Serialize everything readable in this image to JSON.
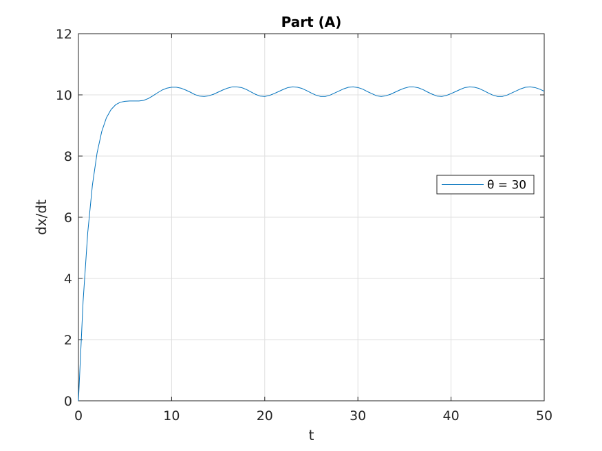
{
  "chart_data": {
    "type": "line",
    "title": "Part (A)",
    "xlabel": "t",
    "ylabel": "dx/dt",
    "xlim": [
      0,
      50
    ],
    "ylim": [
      0,
      12
    ],
    "xticks": [
      0,
      10,
      20,
      30,
      40,
      50
    ],
    "yticks": [
      0,
      2,
      4,
      6,
      8,
      10,
      12
    ],
    "grid": true,
    "legend_position": "right-middle",
    "series": [
      {
        "name": "θ = 30",
        "color": "#0072bd",
        "x": [
          0,
          0.5,
          1,
          1.5,
          2,
          2.5,
          3,
          3.5,
          4,
          4.5,
          5,
          5.5,
          6,
          6.5,
          7,
          7.5,
          8,
          8.5,
          9,
          9.5,
          10,
          10.5,
          11,
          11.5,
          12,
          12.5,
          13,
          13.5,
          14,
          14.5,
          15,
          15.5,
          16,
          16.5,
          17,
          17.5,
          18,
          18.5,
          19,
          19.5,
          20,
          20.5,
          21,
          21.5,
          22,
          22.5,
          23,
          23.5,
          24,
          24.5,
          25,
          25.5,
          26,
          26.5,
          27,
          27.5,
          28,
          28.5,
          29,
          29.5,
          30,
          30.5,
          31,
          31.5,
          32,
          32.5,
          33,
          33.5,
          34,
          34.5,
          35,
          35.5,
          36,
          36.5,
          37,
          37.5,
          38,
          38.5,
          39,
          39.5,
          40,
          40.5,
          41,
          41.5,
          42,
          42.5,
          43,
          43.5,
          44,
          44.5,
          45,
          45.5,
          46,
          46.5,
          47,
          47.5,
          48,
          48.5,
          49,
          49.5,
          50
        ],
        "y": [
          0,
          3.25,
          5.5,
          7.05,
          8.1,
          8.8,
          9.25,
          9.52,
          9.68,
          9.76,
          9.79,
          9.8,
          9.8,
          9.8,
          9.82,
          9.88,
          9.97,
          10.07,
          10.16,
          10.22,
          10.25,
          10.25,
          10.22,
          10.16,
          10.09,
          10.01,
          9.96,
          9.95,
          9.97,
          10.02,
          10.09,
          10.16,
          10.22,
          10.26,
          10.26,
          10.24,
          10.18,
          10.1,
          10.02,
          9.96,
          9.95,
          9.98,
          10.04,
          10.11,
          10.18,
          10.24,
          10.26,
          10.25,
          10.21,
          10.14,
          10.06,
          9.99,
          9.95,
          9.95,
          9.99,
          10.06,
          10.13,
          10.2,
          10.25,
          10.26,
          10.24,
          10.19,
          10.11,
          10.04,
          9.97,
          9.95,
          9.97,
          10.02,
          10.09,
          10.16,
          10.22,
          10.26,
          10.26,
          10.23,
          10.17,
          10.09,
          10.02,
          9.96,
          9.95,
          9.98,
          10.04,
          10.11,
          10.18,
          10.24,
          10.26,
          10.25,
          10.21,
          10.14,
          10.06,
          9.99,
          9.95,
          9.95,
          9.99,
          10.06,
          10.13,
          10.2,
          10.25,
          10.26,
          10.24,
          10.19,
          10.12
        ]
      }
    ]
  }
}
